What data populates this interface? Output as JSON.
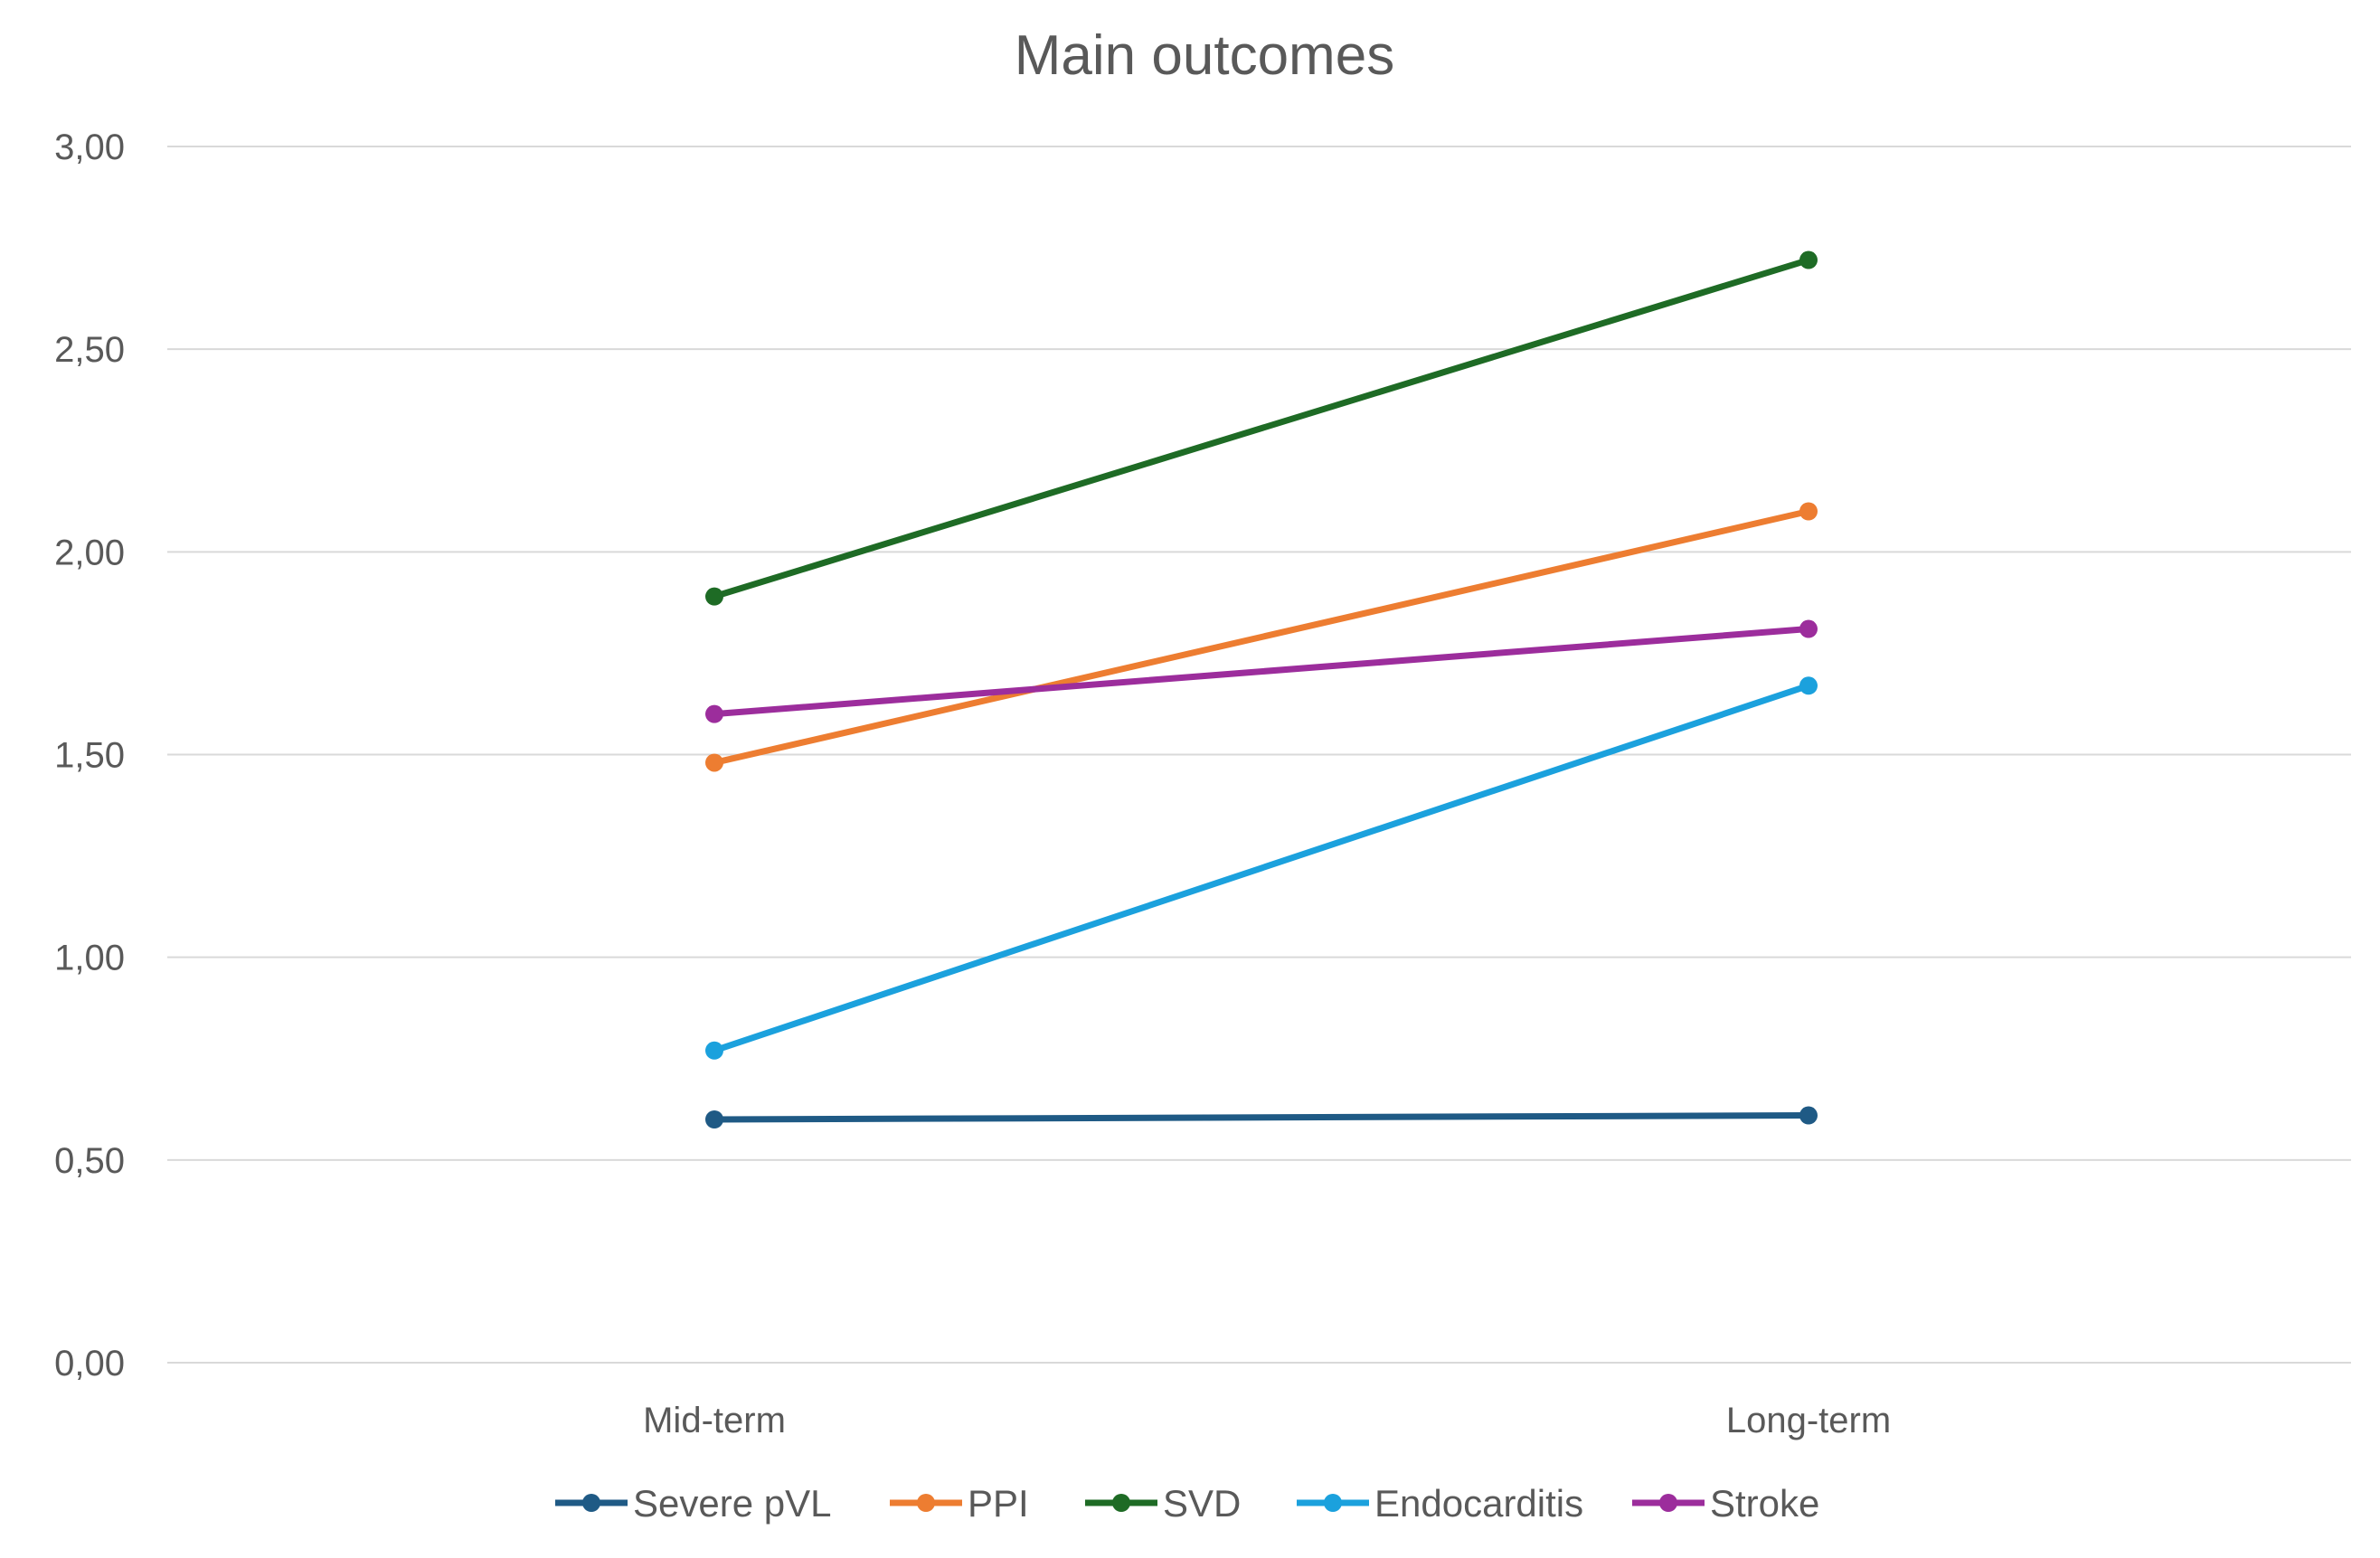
{
  "chart_data": {
    "type": "line",
    "title": "Main outcomes",
    "xlabel": "",
    "ylabel": "",
    "categories": [
      "Mid-term",
      "Long-term"
    ],
    "ylim": [
      0,
      3
    ],
    "yticks": [
      "0,00",
      "0,50",
      "1,00",
      "1,50",
      "2,00",
      "2,50",
      "3,00"
    ],
    "grid": "horizontal",
    "legend_position": "bottom",
    "series": [
      {
        "name": "Severe pVL",
        "color": "#1f5a85",
        "values": [
          0.6,
          0.61
        ]
      },
      {
        "name": "PPI",
        "color": "#ed7d31",
        "values": [
          1.48,
          2.1
        ]
      },
      {
        "name": "SVD",
        "color": "#1e6b25",
        "values": [
          1.89,
          2.72
        ]
      },
      {
        "name": "Endocarditis",
        "color": "#1ba1dd",
        "values": [
          0.77,
          1.67
        ]
      },
      {
        "name": "Stroke",
        "color": "#9c2d9c",
        "values": [
          1.6,
          1.81
        ]
      }
    ]
  }
}
